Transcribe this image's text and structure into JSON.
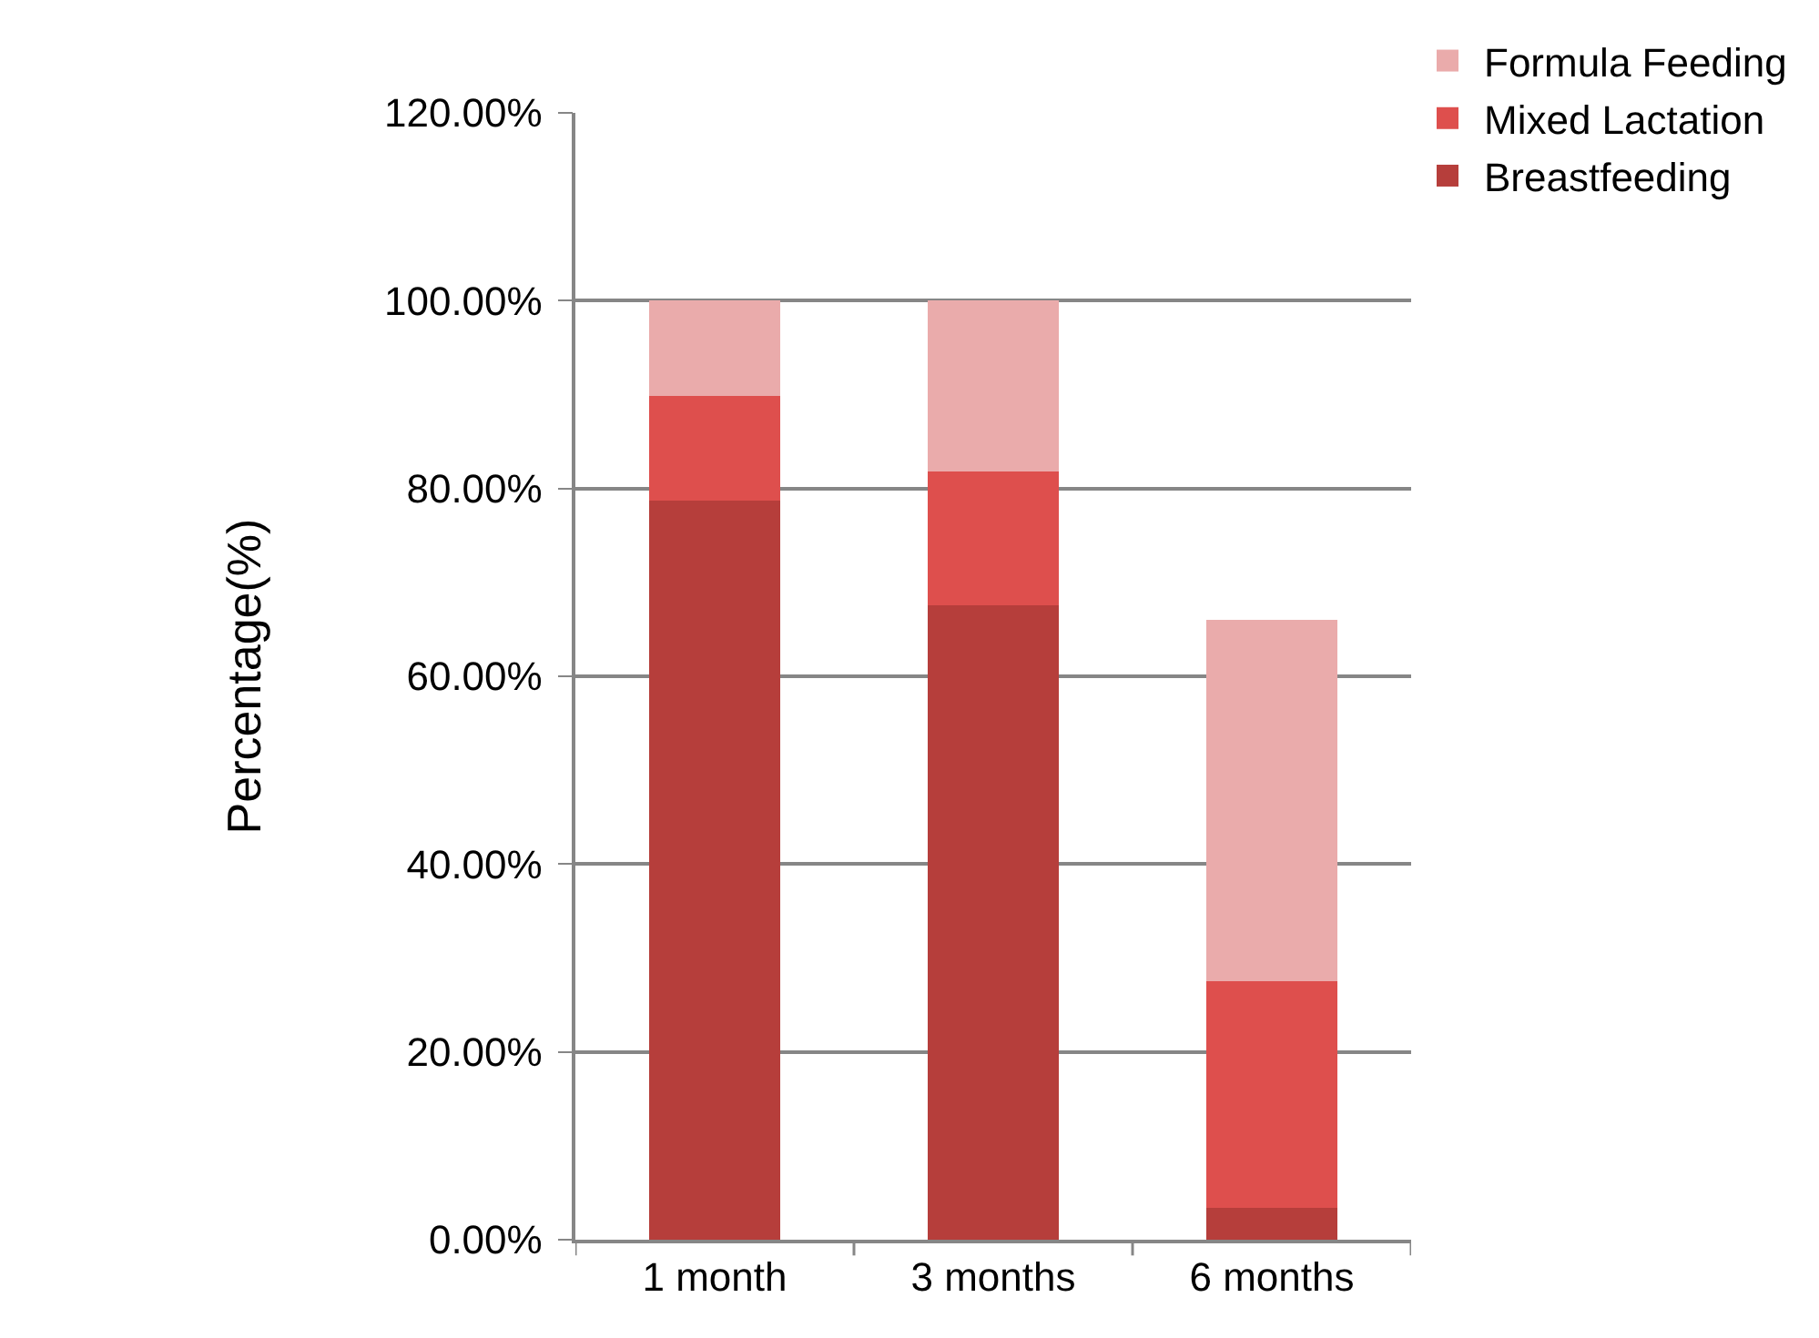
{
  "chart_data": {
    "type": "bar",
    "stacked": true,
    "ylabel": "Percentage(%)",
    "categories": [
      "1 month",
      "3 months",
      "6 months"
    ],
    "series": [
      {
        "name": "Breastfeeding",
        "color": "#b63e3b",
        "values": [
          78.7,
          67.6,
          3.4
        ]
      },
      {
        "name": "Mixed Lactation",
        "color": "#de4f4d",
        "values": [
          11.2,
          14.2,
          24.1
        ]
      },
      {
        "name": "Formula Feeding",
        "color": "#eaabab",
        "values": [
          10.1,
          18.2,
          38.5
        ]
      }
    ],
    "ylim": [
      0,
      120
    ],
    "yticks": [
      {
        "value": 0,
        "label": "0.00%"
      },
      {
        "value": 20,
        "label": "20.00%"
      },
      {
        "value": 40,
        "label": "40.00%"
      },
      {
        "value": 60,
        "label": "60.00%"
      },
      {
        "value": 80,
        "label": "80.00%"
      },
      {
        "value": 100,
        "label": "100.00%"
      },
      {
        "value": 120,
        "label": "120.00%"
      }
    ],
    "grid": "y",
    "legend": "top right"
  }
}
